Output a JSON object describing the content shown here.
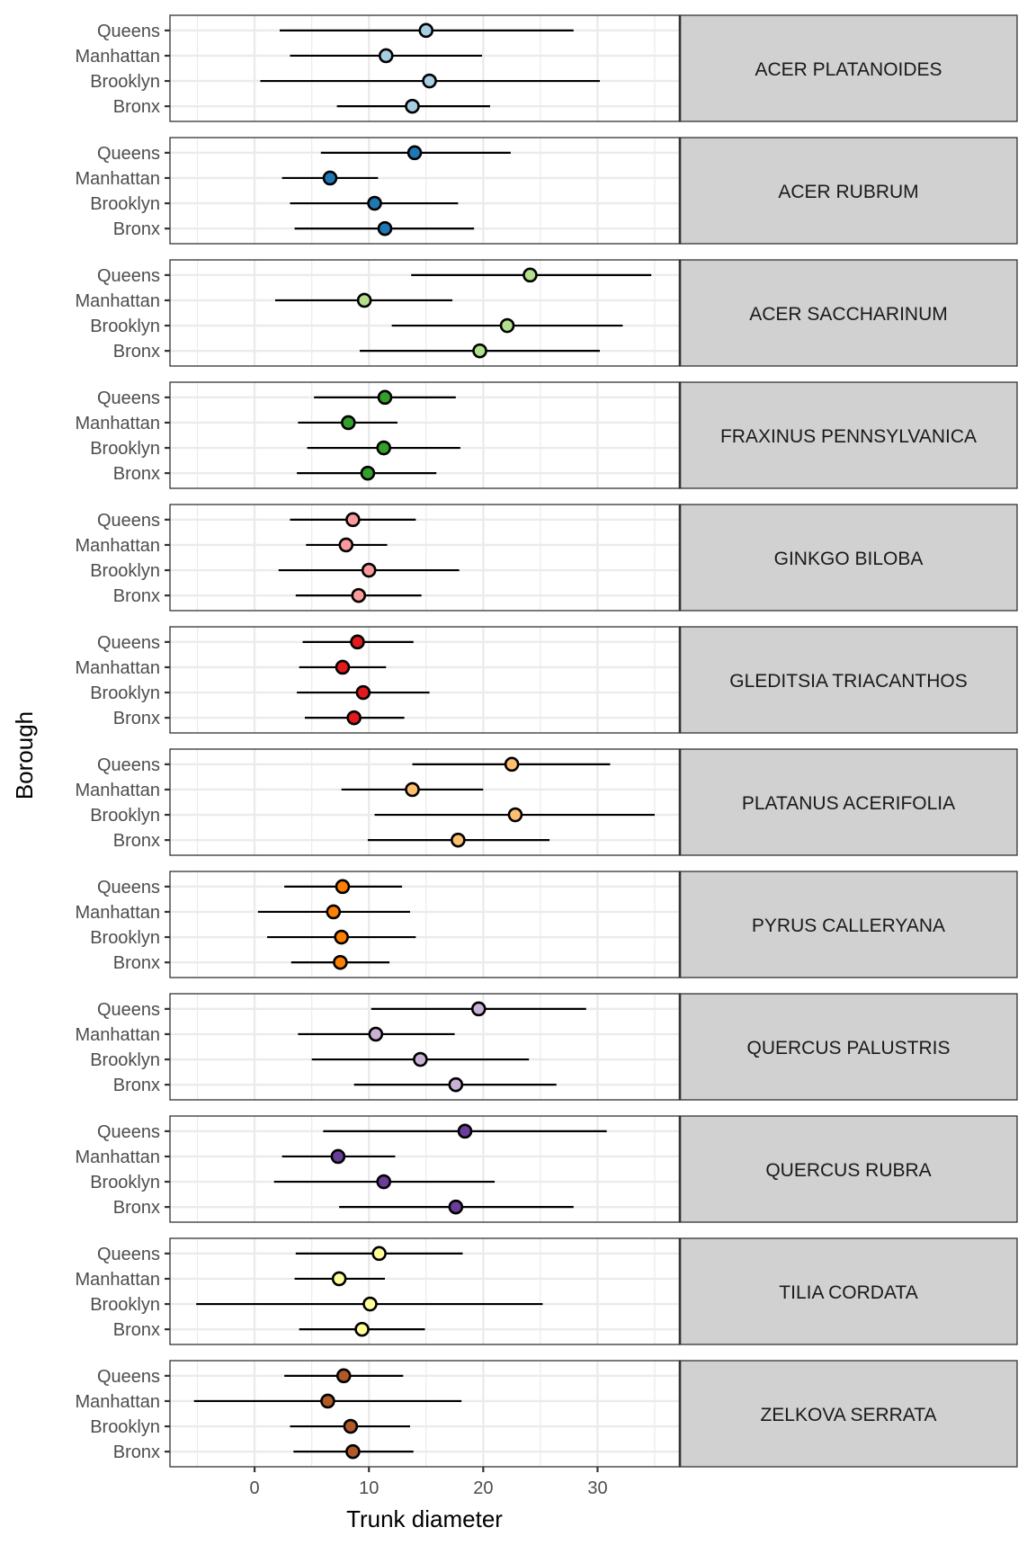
{
  "chart_data": {
    "type": "scatter",
    "subtype": "pointrange-faceted",
    "xlabel": "Trunk diameter",
    "ylabel": "Borough",
    "xlim": [
      -7.4,
      37.2
    ],
    "xticks": [
      0,
      10,
      20,
      30
    ],
    "grid": true,
    "legend": "none",
    "categories": [
      "Queens",
      "Manhattan",
      "Brooklyn",
      "Bronx"
    ],
    "facets": [
      {
        "name": "ACER PLATANOIDES",
        "color": "#A6CEE3",
        "points": [
          {
            "borough": "Queens",
            "low": 2.2,
            "mid": 15.0,
            "high": 27.9
          },
          {
            "borough": "Manhattan",
            "low": 3.1,
            "mid": 11.5,
            "high": 19.9
          },
          {
            "borough": "Brooklyn",
            "low": 0.5,
            "mid": 15.3,
            "high": 30.2
          },
          {
            "borough": "Bronx",
            "low": 7.2,
            "mid": 13.8,
            "high": 20.6
          }
        ]
      },
      {
        "name": "ACER RUBRUM",
        "color": "#1F78B4",
        "points": [
          {
            "borough": "Queens",
            "low": 5.8,
            "mid": 14.0,
            "high": 22.4
          },
          {
            "borough": "Manhattan",
            "low": 2.4,
            "mid": 6.6,
            "high": 10.8
          },
          {
            "borough": "Brooklyn",
            "low": 3.1,
            "mid": 10.5,
            "high": 17.8
          },
          {
            "borough": "Bronx",
            "low": 3.5,
            "mid": 11.4,
            "high": 19.2
          }
        ]
      },
      {
        "name": "ACER SACCHARINUM",
        "color": "#B2DF8A",
        "points": [
          {
            "borough": "Queens",
            "low": 13.7,
            "mid": 24.1,
            "high": 34.7
          },
          {
            "borough": "Manhattan",
            "low": 1.8,
            "mid": 9.6,
            "high": 17.3
          },
          {
            "borough": "Brooklyn",
            "low": 12.0,
            "mid": 22.1,
            "high": 32.2
          },
          {
            "borough": "Bronx",
            "low": 9.2,
            "mid": 19.7,
            "high": 30.2
          }
        ]
      },
      {
        "name": "FRAXINUS PENNSYLVANICA",
        "color": "#33A02C",
        "points": [
          {
            "borough": "Queens",
            "low": 5.2,
            "mid": 11.4,
            "high": 17.6
          },
          {
            "borough": "Manhattan",
            "low": 3.8,
            "mid": 8.2,
            "high": 12.5
          },
          {
            "borough": "Brooklyn",
            "low": 4.6,
            "mid": 11.3,
            "high": 18.0
          },
          {
            "borough": "Bronx",
            "low": 3.7,
            "mid": 9.9,
            "high": 15.9
          }
        ]
      },
      {
        "name": "GINKGO BILOBA",
        "color": "#FB9A99",
        "points": [
          {
            "borough": "Queens",
            "low": 3.1,
            "mid": 8.6,
            "high": 14.1
          },
          {
            "borough": "Manhattan",
            "low": 4.5,
            "mid": 8.0,
            "high": 11.6
          },
          {
            "borough": "Brooklyn",
            "low": 2.1,
            "mid": 10.0,
            "high": 17.9
          },
          {
            "borough": "Bronx",
            "low": 3.6,
            "mid": 9.1,
            "high": 14.6
          }
        ]
      },
      {
        "name": "GLEDITSIA TRIACANTHOS",
        "color": "#E31A1C",
        "points": [
          {
            "borough": "Queens",
            "low": 4.2,
            "mid": 9.0,
            "high": 13.9
          },
          {
            "borough": "Manhattan",
            "low": 3.9,
            "mid": 7.7,
            "high": 11.5
          },
          {
            "borough": "Brooklyn",
            "low": 3.7,
            "mid": 9.5,
            "high": 15.3
          },
          {
            "borough": "Bronx",
            "low": 4.4,
            "mid": 8.7,
            "high": 13.1
          }
        ]
      },
      {
        "name": "PLATANUS ACERIFOLIA",
        "color": "#FDBF6F",
        "points": [
          {
            "borough": "Queens",
            "low": 13.8,
            "mid": 22.5,
            "high": 31.1
          },
          {
            "borough": "Manhattan",
            "low": 7.6,
            "mid": 13.8,
            "high": 20.0
          },
          {
            "borough": "Brooklyn",
            "low": 10.5,
            "mid": 22.8,
            "high": 35.0
          },
          {
            "borough": "Bronx",
            "low": 9.9,
            "mid": 17.8,
            "high": 25.8
          }
        ]
      },
      {
        "name": "PYRUS CALLERYANA",
        "color": "#FF7F00",
        "points": [
          {
            "borough": "Queens",
            "low": 2.6,
            "mid": 7.7,
            "high": 12.9
          },
          {
            "borough": "Manhattan",
            "low": 0.3,
            "mid": 6.9,
            "high": 13.6
          },
          {
            "borough": "Brooklyn",
            "low": 1.1,
            "mid": 7.6,
            "high": 14.1
          },
          {
            "borough": "Bronx",
            "low": 3.2,
            "mid": 7.5,
            "high": 11.8
          }
        ]
      },
      {
        "name": "QUERCUS PALUSTRIS",
        "color": "#CAB2D6",
        "points": [
          {
            "borough": "Queens",
            "low": 10.2,
            "mid": 19.6,
            "high": 29.0
          },
          {
            "borough": "Manhattan",
            "low": 3.8,
            "mid": 10.6,
            "high": 17.5
          },
          {
            "borough": "Brooklyn",
            "low": 5.0,
            "mid": 14.5,
            "high": 24.0
          },
          {
            "borough": "Bronx",
            "low": 8.7,
            "mid": 17.6,
            "high": 26.4
          }
        ]
      },
      {
        "name": "QUERCUS RUBRA",
        "color": "#6A3D9A",
        "points": [
          {
            "borough": "Queens",
            "low": 6.0,
            "mid": 18.4,
            "high": 30.8
          },
          {
            "borough": "Manhattan",
            "low": 2.4,
            "mid": 7.3,
            "high": 12.3
          },
          {
            "borough": "Brooklyn",
            "low": 1.7,
            "mid": 11.3,
            "high": 21.0
          },
          {
            "borough": "Bronx",
            "low": 7.4,
            "mid": 17.6,
            "high": 27.9
          }
        ]
      },
      {
        "name": "TILIA CORDATA",
        "color": "#FFFF99",
        "points": [
          {
            "borough": "Queens",
            "low": 3.6,
            "mid": 10.9,
            "high": 18.2
          },
          {
            "borough": "Manhattan",
            "low": 3.5,
            "mid": 7.4,
            "high": 11.4
          },
          {
            "borough": "Brooklyn",
            "low": -5.1,
            "mid": 10.1,
            "high": 25.2
          },
          {
            "borough": "Bronx",
            "low": 3.9,
            "mid": 9.4,
            "high": 14.9
          }
        ]
      },
      {
        "name": "ZELKOVA SERRATA",
        "color": "#B15928",
        "points": [
          {
            "borough": "Queens",
            "low": 2.6,
            "mid": 7.8,
            "high": 13.0
          },
          {
            "borough": "Manhattan",
            "low": -5.3,
            "mid": 6.4,
            "high": 18.1
          },
          {
            "borough": "Brooklyn",
            "low": 3.1,
            "mid": 8.4,
            "high": 13.6
          },
          {
            "borough": "Bronx",
            "low": 3.4,
            "mid": 8.6,
            "high": 13.9
          }
        ]
      }
    ]
  }
}
